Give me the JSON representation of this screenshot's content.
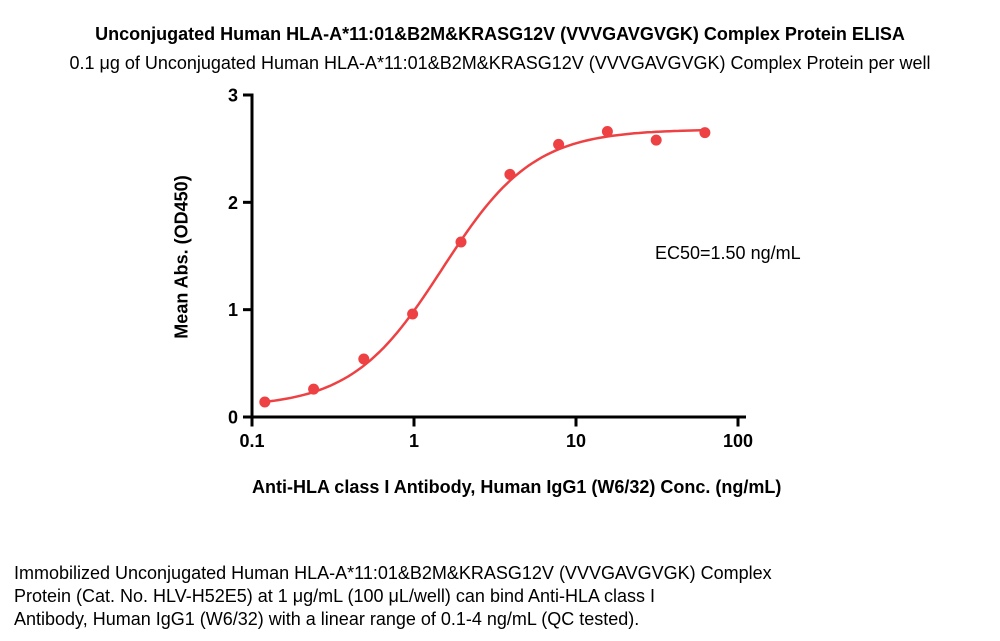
{
  "chart_data": {
    "type": "scatter",
    "title": "Unconjugated Human HLA-A*11:01&B2M&KRASG12V (VVVGAVGVGK) Complex Protein ELISA",
    "subtitle": "0.1 μg of Unconjugated Human HLA-A*11:01&B2M&KRASG12V (VVVGAVGVGK) Complex Protein per well",
    "xlabel": "Anti-HLA class I Antibody, Human IgG1 (W6/32) Conc. (ng/mL)",
    "ylabel": "Mean Abs. (OD450)",
    "x_scale": "log",
    "xlim": [
      0.1,
      100
    ],
    "ylim": [
      0,
      3
    ],
    "x_ticks": [
      0.1,
      1,
      10,
      100
    ],
    "x_tick_labels": [
      "0.1",
      "1",
      "10",
      "100"
    ],
    "y_ticks": [
      0,
      1,
      2,
      3
    ],
    "y_tick_labels": [
      "0",
      "1",
      "2",
      "3"
    ],
    "series": [
      {
        "name": "Anti-HLA class I Antibody, Human IgG1 (W6/32)",
        "x": [
          0.12,
          0.24,
          0.49,
          0.98,
          1.95,
          3.91,
          7.81,
          15.63,
          31.25,
          62.5
        ],
        "y": [
          0.14,
          0.26,
          0.54,
          0.96,
          1.63,
          2.26,
          2.54,
          2.66,
          2.58,
          2.65
        ]
      }
    ],
    "fit": {
      "model": "4PL",
      "bottom": 0.09,
      "top": 2.68,
      "ec50": 1.5,
      "hill": 1.55
    },
    "annotation": "EC50=1.50 ng/mL",
    "accent_color": "#ee4143",
    "axis_color": "#000000",
    "grid": false,
    "legend": "none"
  },
  "footer": {
    "lines": [
      "Immobilized Unconjugated Human HLA-A*11:01&B2M&KRASG12V (VVVGAVGVGK) Complex",
      "Protein (Cat. No. HLV-H52E5) at 1 μg/mL (100 μL/well) can bind Anti-HLA class I",
      "Antibody, Human IgG1 (W6/32) with a linear range of 0.1-4 ng/mL (QC tested)."
    ]
  }
}
